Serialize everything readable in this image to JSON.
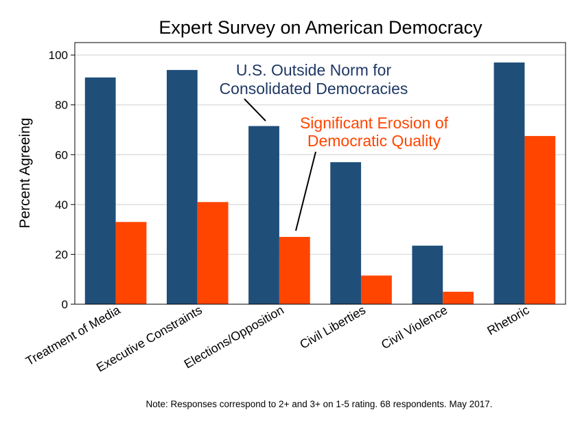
{
  "chart_data": {
    "type": "bar",
    "title": "Expert Survey on American Democracy",
    "xlabel": "",
    "ylabel": "Percent Agreeing",
    "ylim": [
      0,
      105
    ],
    "yticks": [
      0,
      20,
      40,
      60,
      80,
      100
    ],
    "grid": true,
    "categories": [
      "Treatment of Media",
      "Executive Constraints",
      "Elections/Opposition",
      "Civil Liberties",
      "Civil Violence",
      "Rhetoric"
    ],
    "series": [
      {
        "name": "U.S. Outside Norm for Consolidated Democracies",
        "color": "#1f4e79",
        "values": [
          91,
          94,
          71.5,
          57,
          23.5,
          97
        ]
      },
      {
        "name": "Significant Erosion of Democratic Quality",
        "color": "#ff4500",
        "values": [
          33,
          41,
          27,
          11.5,
          5,
          67.5
        ]
      }
    ],
    "annotations": [
      {
        "lines": [
          "U.S. Outside Norm for",
          "Consolidated Democracies"
        ],
        "color": "#1f3864",
        "points_to": {
          "category": "Elections/Opposition",
          "series": 0
        }
      },
      {
        "lines": [
          "Significant Erosion of",
          "Democratic Quality"
        ],
        "color": "#ff4500",
        "points_to": {
          "category": "Elections/Opposition",
          "series": 1
        }
      }
    ],
    "note": "Note: Responses correspond to 2+ and 3+ on 1-5 rating. 68 respondents. May 2017."
  },
  "colors": {
    "background": "#ffffff",
    "gridline": "#d9d9d9",
    "axis": "#000000"
  }
}
